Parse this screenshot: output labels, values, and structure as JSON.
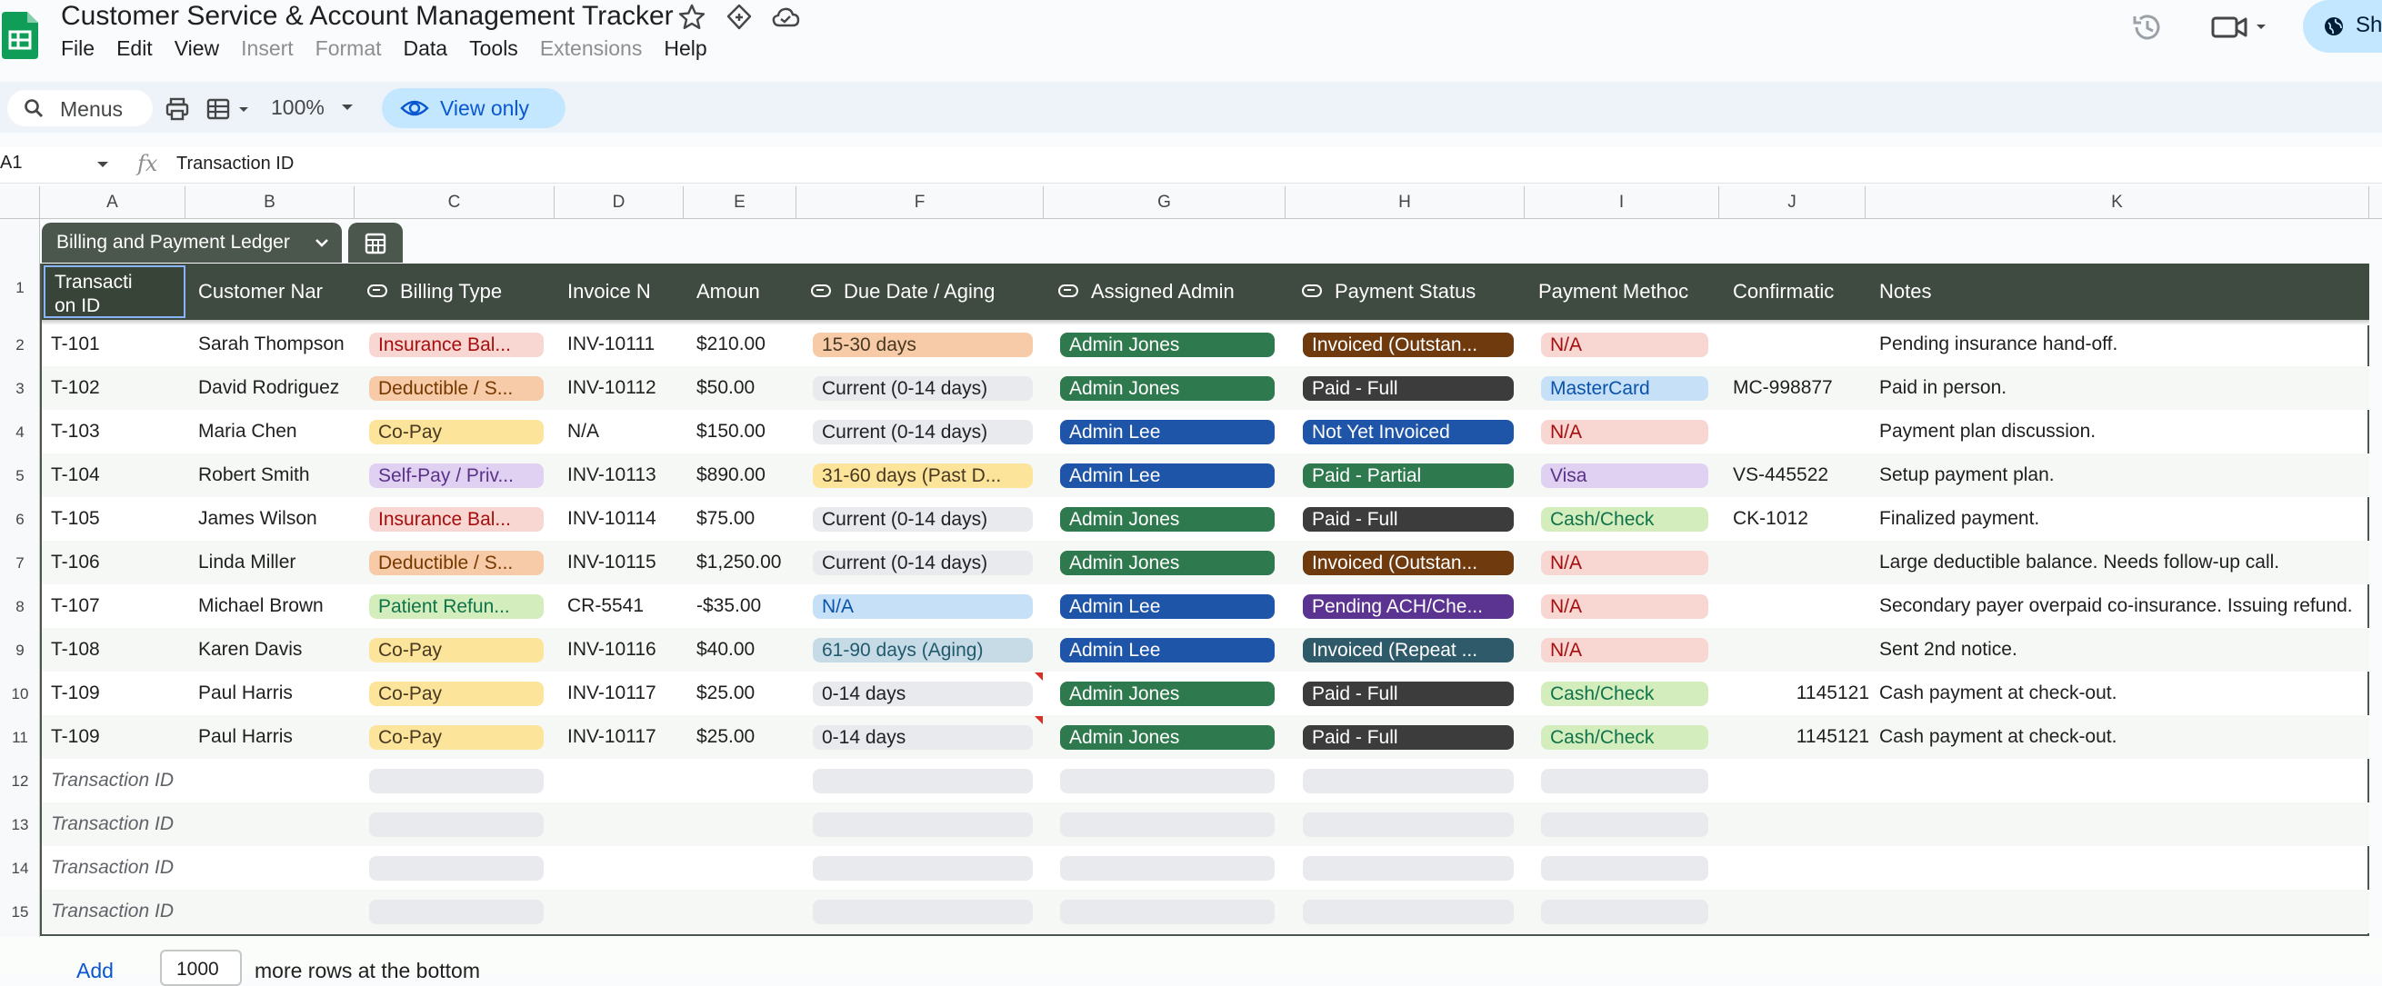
{
  "doc": {
    "title": "Customer Service & Account Management Tracker",
    "menu": [
      "File",
      "Edit",
      "View",
      "Insert",
      "Format",
      "Data",
      "Tools",
      "Extensions",
      "Help"
    ],
    "menu_disabled": [
      "Insert",
      "Format",
      "Extensions"
    ]
  },
  "toolbar": {
    "menus_label": "Menus",
    "zoom": "100%",
    "view_only": "View only"
  },
  "formula_bar": {
    "cell_ref": "A1",
    "fx": "fx",
    "content": "Transaction ID"
  },
  "columns": [
    "A",
    "B",
    "C",
    "D",
    "E",
    "F",
    "G",
    "H",
    "I",
    "J",
    "K"
  ],
  "row_numbers": [
    "1",
    "2",
    "3",
    "4",
    "5",
    "6",
    "7",
    "8",
    "9",
    "10",
    "11",
    "12",
    "13",
    "14",
    "15"
  ],
  "table": {
    "name": "Billing and Payment Ledger",
    "headers": [
      "Transacti on ID",
      "Customer Nar",
      "Billing Type",
      "Invoice N",
      "Amoun",
      "Due Date / Aging",
      "Assigned Admin",
      "Payment Status",
      "Payment Methoc",
      "Confirmatic",
      "Notes"
    ],
    "placeholder": "Transaction ID",
    "rows": [
      {
        "id": "T-101",
        "customer": "Sarah Thompson",
        "billing": "Insurance Bal...",
        "invoice": "INV-10111",
        "amount": "$210.00",
        "due": "15-30 days",
        "admin": "Admin Jones",
        "status": "Invoiced (Outstan...",
        "method": "N/A",
        "confirmation": "",
        "notes": "Pending insurance hand-off."
      },
      {
        "id": "T-102",
        "customer": "David Rodriguez",
        "billing": "Deductible / S...",
        "invoice": "INV-10112",
        "amount": "$50.00",
        "due": "Current (0-14 days)",
        "admin": "Admin Jones",
        "status": "Paid - Full",
        "method": "MasterCard",
        "confirmation": "MC-998877",
        "notes": "Paid in person."
      },
      {
        "id": "T-103",
        "customer": "Maria Chen",
        "billing": "Co-Pay",
        "invoice": "N/A",
        "amount": "$150.00",
        "due": "Current (0-14 days)",
        "admin": "Admin Lee",
        "status": "Not Yet Invoiced",
        "method": "N/A",
        "confirmation": "",
        "notes": "Payment plan discussion."
      },
      {
        "id": "T-104",
        "customer": "Robert Smith",
        "billing": "Self-Pay / Priv...",
        "invoice": "INV-10113",
        "amount": "$890.00",
        "due": "31-60 days (Past D...",
        "admin": "Admin Lee",
        "status": "Paid - Partial",
        "method": "Visa",
        "confirmation": "VS-445522",
        "notes": "Setup payment plan."
      },
      {
        "id": "T-105",
        "customer": "James Wilson",
        "billing": "Insurance Bal...",
        "invoice": "INV-10114",
        "amount": "$75.00",
        "due": "Current (0-14 days)",
        "admin": "Admin Jones",
        "status": "Paid - Full",
        "method": "Cash/Check",
        "confirmation": "CK-1012",
        "notes": "Finalized payment."
      },
      {
        "id": "T-106",
        "customer": "Linda Miller",
        "billing": "Deductible / S...",
        "invoice": "INV-10115",
        "amount": "$1,250.00",
        "due": "Current (0-14 days)",
        "admin": "Admin Jones",
        "status": "Invoiced (Outstan...",
        "method": "N/A",
        "confirmation": "",
        "notes": "Large deductible balance. Needs follow-up call."
      },
      {
        "id": "T-107",
        "customer": "Michael Brown",
        "billing": "Patient Refun...",
        "invoice": "CR-5541",
        "amount": "-$35.00",
        "due": "N/A",
        "admin": "Admin Lee",
        "status": "Pending ACH/Che...",
        "method": "N/A",
        "confirmation": "",
        "notes": "Secondary payer overpaid co-insurance. Issuing refund."
      },
      {
        "id": "T-108",
        "customer": "Karen Davis",
        "billing": "Co-Pay",
        "invoice": "INV-10116",
        "amount": "$40.00",
        "due": "61-90 days (Aging)",
        "admin": "Admin Lee",
        "status": "Invoiced (Repeat ...",
        "method": "N/A",
        "confirmation": "",
        "notes": "Sent 2nd notice."
      },
      {
        "id": "T-109",
        "customer": "Paul Harris",
        "billing": "Co-Pay",
        "invoice": "INV-10117",
        "amount": "$25.00",
        "due": "0-14 days",
        "admin": "Admin Jones",
        "status": "Paid - Full",
        "method": "Cash/Check",
        "confirmation": "1145121",
        "notes": "Cash payment at check-out."
      },
      {
        "id": "T-109",
        "customer": "Paul Harris",
        "billing": "Co-Pay",
        "invoice": "INV-10117",
        "amount": "$25.00",
        "due": "0-14 days",
        "admin": "Admin Jones",
        "status": "Paid - Full",
        "method": "Cash/Check",
        "confirmation": "1145121",
        "notes": "Cash payment at check-out."
      }
    ]
  },
  "chip_colors": {
    "Insurance Bal...": [
      "#f8d6d2",
      "#a50e0e"
    ],
    "Deductible / S...": [
      "#f7cba7",
      "#753800"
    ],
    "Co-Pay": [
      "#fde49b",
      "#473822"
    ],
    "Self-Pay / Priv...": [
      "#e0d1f3",
      "#5a3286"
    ],
    "Patient Refun...": [
      "#d4edbc",
      "#11734b"
    ],
    "15-30 days": [
      "#f7cba7",
      "#473822"
    ],
    "Current (0-14 days)": [
      "#e8eaed",
      "#202124"
    ],
    "31-60 days (Past D...": [
      "#fde49b",
      "#473822"
    ],
    "N/A_due": [
      "#c6e1f7",
      "#0a53a8"
    ],
    "61-90 days (Aging)": [
      "#c6dbe6",
      "#215a6c"
    ],
    "0-14 days": [
      "#e8eaed",
      "#202124"
    ],
    "Admin Jones": [
      "#2e7a4e",
      "#ffffff"
    ],
    "Admin Lee": [
      "#1f55a8",
      "#ffffff"
    ],
    "Invoiced (Outstan...": [
      "#6e3a0e",
      "#ffffff"
    ],
    "Paid - Full": [
      "#3c3c3c",
      "#ffffff"
    ],
    "Not Yet Invoiced": [
      "#1f55a8",
      "#ffffff"
    ],
    "Paid - Partial": [
      "#2e7a4e",
      "#ffffff"
    ],
    "Pending ACH/Che...": [
      "#5b3391",
      "#ffffff"
    ],
    "Invoiced (Repeat ...": [
      "#2f5a6a",
      "#ffffff"
    ],
    "N/A_method": [
      "#f8d6d2",
      "#a50e0e"
    ],
    "MasterCard": [
      "#c6e1f7",
      "#0a53a8"
    ],
    "Visa": [
      "#e0d1f3",
      "#5a3286"
    ],
    "Cash/Check": [
      "#d4edbc",
      "#11734b"
    ]
  },
  "footer": {
    "add_label": "Add",
    "add_count": "1000",
    "more_label": "more rows at the bottom"
  }
}
